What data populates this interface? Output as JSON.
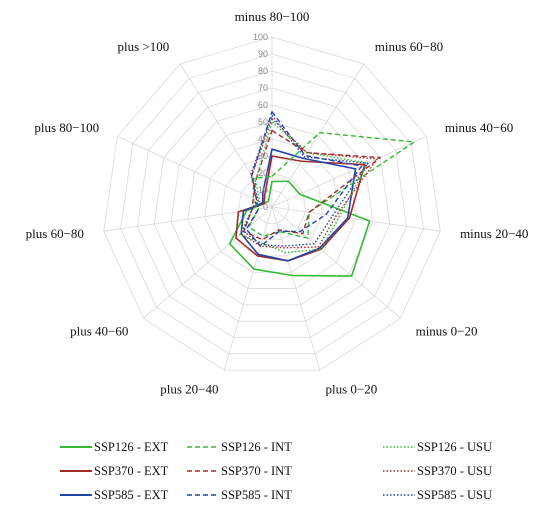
{
  "chart_data": {
    "type": "radar",
    "categories": [
      "minus 80−100",
      "minus 60−80",
      "minus 40−60",
      "minus 20−40",
      "minus 0−20",
      "plus 0−20",
      "plus 20−40",
      "plus 40−60",
      "plus 60−80",
      "plus 80−100",
      "plus >100"
    ],
    "r_range": [
      0,
      100
    ],
    "r_ticks": [
      "0",
      "10",
      "20",
      "30",
      "40",
      "50",
      "60",
      "70",
      "80",
      "90",
      "100"
    ],
    "grid": true,
    "legend_position": "bottom",
    "series": [
      {
        "name": "SSP126 - EXT",
        "color": "#33bb33",
        "dash": "solid",
        "values": [
          15,
          18,
          18,
          58,
          62,
          42,
          38,
          33,
          15,
          5,
          4
        ]
      },
      {
        "name": "SSP370 - EXT",
        "color": "#a52a2a",
        "dash": "solid",
        "values": [
          30,
          32,
          60,
          46,
          38,
          33,
          30,
          28,
          20,
          5,
          8
        ]
      },
      {
        "name": "SSP585 - EXT",
        "color": "#2244aa",
        "dash": "solid",
        "values": [
          34,
          34,
          54,
          45,
          37,
          33,
          29,
          24,
          17,
          6,
          10
        ]
      },
      {
        "name": "SSP126 - INT",
        "color": "#33bb33",
        "dash": "dashed",
        "values": [
          18,
          52,
          92,
          22,
          28,
          15,
          18,
          18,
          8,
          12,
          20
        ]
      },
      {
        "name": "SSP370 - INT",
        "color": "#a52a2a",
        "dash": "dashed",
        "values": [
          45,
          38,
          70,
          22,
          24,
          14,
          20,
          22,
          12,
          12,
          18
        ]
      },
      {
        "name": "SSP585 - INT",
        "color": "#2244aa",
        "dash": "dashed",
        "values": [
          56,
          36,
          58,
          32,
          22,
          15,
          24,
          20,
          8,
          10,
          22
        ]
      },
      {
        "name": "SSP126 - USU",
        "color": "#33bb33",
        "dash": "dotted",
        "values": [
          50,
          38,
          62,
          40,
          38,
          28,
          22,
          25,
          12,
          8,
          18
        ]
      },
      {
        "name": "SSP370 - USU",
        "color": "#a52a2a",
        "dash": "dotted",
        "values": [
          52,
          38,
          68,
          38,
          36,
          25,
          24,
          24,
          12,
          10,
          22
        ]
      },
      {
        "name": "SSP585 - USU",
        "color": "#2244aa",
        "dash": "dotted",
        "values": [
          54,
          35,
          62,
          36,
          33,
          24,
          23,
          22,
          12,
          9,
          23
        ]
      }
    ]
  }
}
